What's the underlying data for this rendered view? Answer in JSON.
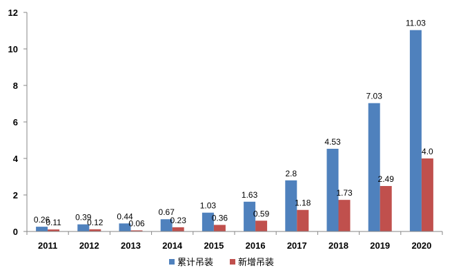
{
  "chart_data": {
    "type": "bar",
    "categories": [
      "2011",
      "2012",
      "2013",
      "2014",
      "2015",
      "2016",
      "2017",
      "2018",
      "2019",
      "2020"
    ],
    "series": [
      {
        "name": "累计吊装",
        "color": "#4F81BD",
        "values": [
          0.26,
          0.39,
          0.44,
          0.67,
          1.03,
          1.63,
          2.8,
          4.53,
          7.03,
          11.03
        ],
        "labels": [
          "0.26",
          "0.39",
          "0.44",
          "0.67",
          "1.03",
          "1.63",
          "2.8",
          "4.53",
          "7.03",
          "11.03"
        ]
      },
      {
        "name": "新增吊装",
        "color": "#C0504D",
        "values": [
          0.11,
          0.12,
          0.06,
          0.23,
          0.36,
          0.59,
          1.18,
          1.73,
          2.49,
          4.0
        ],
        "labels": [
          "0.11",
          "0.12",
          "0.06",
          "0.23",
          "0.36",
          "0.59",
          "1.18",
          "1.73",
          "2.49",
          "4.0"
        ]
      }
    ],
    "yticks": [
      "0",
      "2",
      "4",
      "6",
      "8",
      "10",
      "12"
    ],
    "ylim": [
      0,
      12
    ],
    "grid": false,
    "legend": "bottom-center"
  }
}
